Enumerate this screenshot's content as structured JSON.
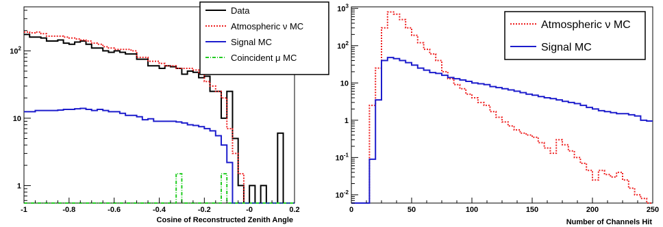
{
  "chart_data": [
    {
      "type": "histogram",
      "title": "",
      "xlabel": "Cosine of Reconstructed Zenith Angle",
      "ylabel": "",
      "xlim": [
        -1,
        0.2
      ],
      "ylim": [
        0.55,
        450
      ],
      "yscale": "log",
      "x_ticks": [
        "-1",
        "-0.8",
        "-0.6",
        "-0.4",
        "-0.2",
        "-0",
        "0.2"
      ],
      "y_ticks": [
        {
          "value": 1,
          "label": "1"
        },
        {
          "value": 10,
          "label": "10"
        },
        {
          "value": 100,
          "label": "10",
          "sup": "2"
        }
      ],
      "bin_edges_start": -1.0,
      "bin_width": 0.025,
      "legend_position": "top-right",
      "series": [
        {
          "name": "Data",
          "color": "#000000",
          "style": "solid",
          "values": [
            175,
            160,
            160,
            155,
            140,
            140,
            145,
            130,
            125,
            135,
            140,
            125,
            110,
            110,
            100,
            95,
            100,
            95,
            90,
            90,
            75,
            75,
            60,
            60,
            55,
            60,
            58,
            55,
            45,
            50,
            48,
            40,
            42,
            25,
            25,
            10,
            25,
            5,
            1,
            0.5,
            1,
            0.5,
            1,
            0.5,
            0.5,
            6,
            0.5,
            0.5
          ]
        },
        {
          "name": "Atmospheric ν MC",
          "color": "#ee1c1c",
          "style": "dotted",
          "values": [
            190,
            185,
            190,
            180,
            165,
            165,
            165,
            160,
            155,
            150,
            145,
            140,
            130,
            125,
            115,
            110,
            105,
            105,
            105,
            100,
            80,
            80,
            70,
            70,
            65,
            60,
            60,
            55,
            55,
            55,
            52,
            48,
            35,
            30,
            25,
            20,
            7,
            3,
            1.5,
            0.5,
            0.5,
            0.5,
            0.5,
            0.5,
            0.5,
            0.5,
            0.5,
            0.5
          ]
        },
        {
          "name": "Signal MC",
          "color": "#1c1ccc",
          "style": "solid",
          "values": [
            12.5,
            12.5,
            13,
            13,
            13,
            13,
            13.2,
            13.5,
            13.5,
            13.8,
            14,
            13.5,
            13,
            13.5,
            13,
            12.5,
            12.5,
            11.8,
            11,
            11,
            10.5,
            9.5,
            9.8,
            9,
            9,
            9,
            9,
            8.8,
            8.5,
            8,
            7.8,
            7.5,
            7,
            6.5,
            5.5,
            4,
            2.2,
            0.5,
            0.5,
            0.5,
            0.5,
            0.5,
            0.5,
            0.5,
            0.5,
            0.5,
            0.5,
            0.5
          ]
        },
        {
          "name": "Coincident μ MC",
          "color": "#22cc22",
          "style": "dashdot",
          "values": [
            0.55,
            0.55,
            0.55,
            0.55,
            0.55,
            0.55,
            0.55,
            0.55,
            0.55,
            0.55,
            0.55,
            0.55,
            0.55,
            0.55,
            0.55,
            0.55,
            0.55,
            0.55,
            0.55,
            0.55,
            0.55,
            0.55,
            0.55,
            0.55,
            0.55,
            0.55,
            0.55,
            1.5,
            0.55,
            0.55,
            0.55,
            0.55,
            0.55,
            0.55,
            0.55,
            1.5,
            0.55,
            0.55,
            0.55,
            0.55,
            0.55,
            0.55,
            0.55,
            0.55,
            0.55,
            0.55,
            0.55,
            0.55
          ]
        }
      ]
    },
    {
      "type": "histogram",
      "title": "",
      "xlabel": "Number of Channels Hit",
      "ylabel": "",
      "xlim": [
        0,
        250
      ],
      "ylim": [
        0.006,
        1100
      ],
      "yscale": "log",
      "x_ticks": [
        "0",
        "50",
        "100",
        "150",
        "200",
        "250"
      ],
      "y_ticks": [
        {
          "value": 0.01,
          "label": "10",
          "sup": "-2"
        },
        {
          "value": 0.1,
          "label": "10",
          "sup": "-1"
        },
        {
          "value": 1,
          "label": "1"
        },
        {
          "value": 10,
          "label": "10"
        },
        {
          "value": 100,
          "label": "10",
          "sup": "2"
        },
        {
          "value": 1000,
          "label": "10",
          "sup": "3"
        }
      ],
      "bin_edges_start": 0,
      "bin_width": 5,
      "legend_position": "top-right",
      "series": [
        {
          "name": "Atmospheric ν MC",
          "color": "#ee1c1c",
          "style": "dotted",
          "values": [
            0.006,
            0.006,
            0.006,
            2.5,
            25,
            300,
            800,
            700,
            500,
            300,
            190,
            120,
            80,
            60,
            40,
            20,
            13,
            9,
            7,
            5,
            4,
            3,
            2.5,
            1.7,
            1.2,
            0.9,
            0.7,
            0.55,
            0.45,
            0.4,
            0.35,
            0.25,
            0.18,
            0.13,
            0.3,
            0.22,
            0.15,
            0.1,
            0.07,
            0.045,
            0.025,
            0.045,
            0.035,
            0.03,
            0.04,
            0.025,
            0.015,
            0.01,
            0.008,
            0.006
          ]
        },
        {
          "name": "Signal MC",
          "color": "#1c1ccc",
          "style": "solid",
          "values": [
            0.006,
            0.006,
            0.006,
            0.09,
            3.5,
            40,
            48,
            45,
            40,
            35,
            30,
            25,
            22,
            19,
            18,
            16,
            14,
            13,
            12,
            11,
            10,
            9.5,
            9,
            8,
            7.5,
            7,
            6.5,
            6,
            5.5,
            5,
            4.7,
            4.3,
            4,
            3.8,
            3.5,
            3.2,
            3,
            2.8,
            2.5,
            2.2,
            2,
            1.8,
            1.7,
            1.6,
            1.5,
            1.5,
            1.4,
            1.3,
            1,
            0.95
          ]
        }
      ]
    }
  ]
}
